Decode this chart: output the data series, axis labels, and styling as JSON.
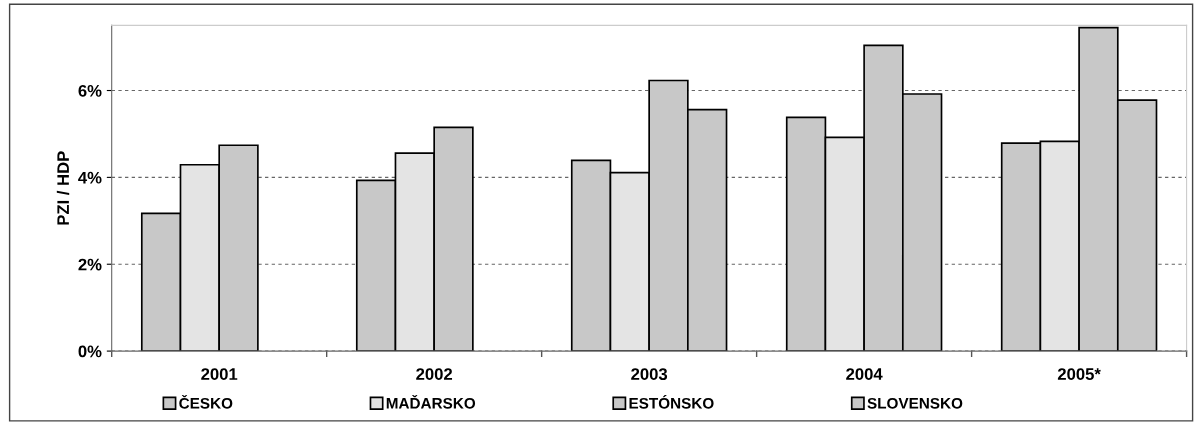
{
  "chart_data": {
    "type": "bar",
    "ylabel": "PZI / HDP",
    "categories": [
      "2001",
      "2002",
      "2003",
      "2004",
      "2005*"
    ],
    "series": [
      {
        "name": "ČESKO",
        "color": "#c8c8c8",
        "values": [
          3.17,
          3.93,
          4.39,
          5.38,
          4.79
        ]
      },
      {
        "name": "MAĎARSKO",
        "color": "#e4e4e4",
        "values": [
          4.29,
          4.56,
          4.11,
          4.92,
          4.83
        ]
      },
      {
        "name": "ESTÓNSKO",
        "color": "#c8c8c8",
        "values": [
          4.74,
          5.15,
          6.23,
          7.04,
          7.45
        ]
      },
      {
        "name": "SLOVENSKO",
        "color": "#c8c8c8",
        "values": [
          null,
          null,
          5.56,
          5.92,
          5.78
        ]
      }
    ],
    "ylim": [
      0,
      7.5
    ],
    "yticks": [
      {
        "value": 0,
        "label": "0%"
      },
      {
        "value": 2,
        "label": "2%"
      },
      {
        "value": 4,
        "label": "4%"
      },
      {
        "value": 6,
        "label": "6%"
      }
    ],
    "grid": "y",
    "legend": "bottom"
  }
}
